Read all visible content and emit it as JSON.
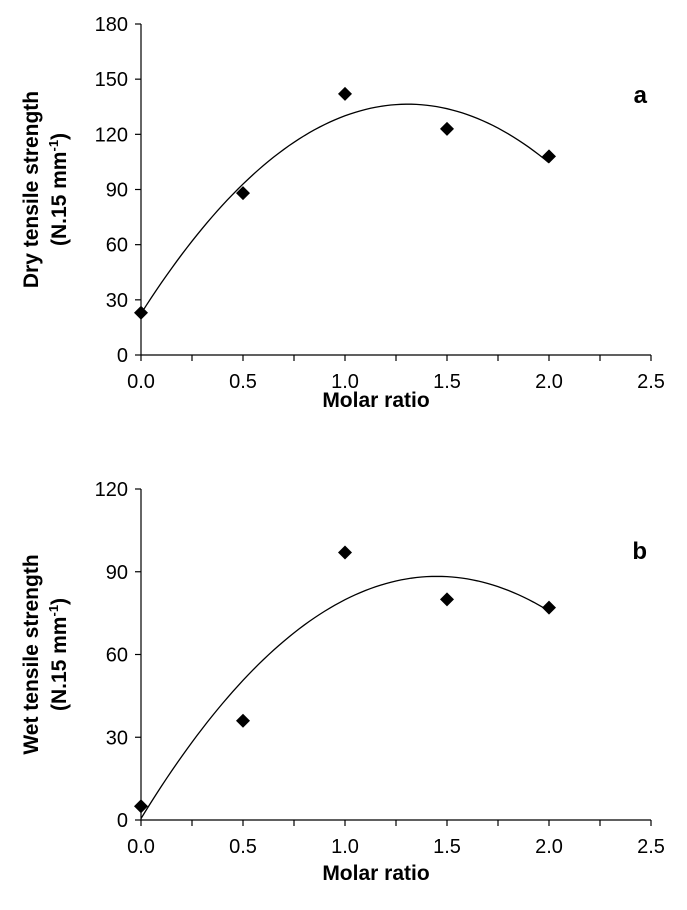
{
  "chart_data": [
    {
      "type": "scatter",
      "panel_label": "a",
      "xlabel": "Molar ratio",
      "ylabel_line1": "Dry tensile strength",
      "ylabel_line2_prefix": "(N.15 mm",
      "ylabel_line2_sup": "-1",
      "ylabel_line2_suffix": ")",
      "xlim": [
        0,
        2.5
      ],
      "ylim": [
        0,
        180
      ],
      "xticks": [
        "0.0",
        "0.5",
        "1.0",
        "1.5",
        "2.0",
        "2.5"
      ],
      "yticks": [
        "0",
        "30",
        "60",
        "90",
        "120",
        "150",
        "180"
      ],
      "grid": false,
      "marker": "diamond",
      "points": [
        {
          "x": 0.0,
          "y": 23
        },
        {
          "x": 0.5,
          "y": 88
        },
        {
          "x": 1.0,
          "y": 142
        },
        {
          "x": 1.5,
          "y": 123
        },
        {
          "x": 2.0,
          "y": 108
        }
      ],
      "trendline": {
        "type": "polynomial",
        "order": 2,
        "from": 0.0,
        "to": 2.0
      }
    },
    {
      "type": "scatter",
      "panel_label": "b",
      "xlabel": "Molar ratio",
      "ylabel_line1": "Wet tensile strength",
      "ylabel_line2_prefix": "(N.15 mm",
      "ylabel_line2_sup": "-1",
      "ylabel_line2_suffix": ")",
      "xlim": [
        0,
        2.5
      ],
      "ylim": [
        0,
        120
      ],
      "xticks": [
        "0.0",
        "0.5",
        "1.0",
        "1.5",
        "2.0",
        "2.5"
      ],
      "yticks": [
        "0",
        "30",
        "60",
        "90",
        "120"
      ],
      "grid": false,
      "marker": "diamond",
      "points": [
        {
          "x": 0.0,
          "y": 5
        },
        {
          "x": 0.5,
          "y": 36
        },
        {
          "x": 1.0,
          "y": 97
        },
        {
          "x": 1.5,
          "y": 80
        },
        {
          "x": 2.0,
          "y": 77
        }
      ],
      "trendline": {
        "type": "polynomial",
        "order": 2,
        "from": 0.0,
        "to": 2.0
      }
    }
  ]
}
